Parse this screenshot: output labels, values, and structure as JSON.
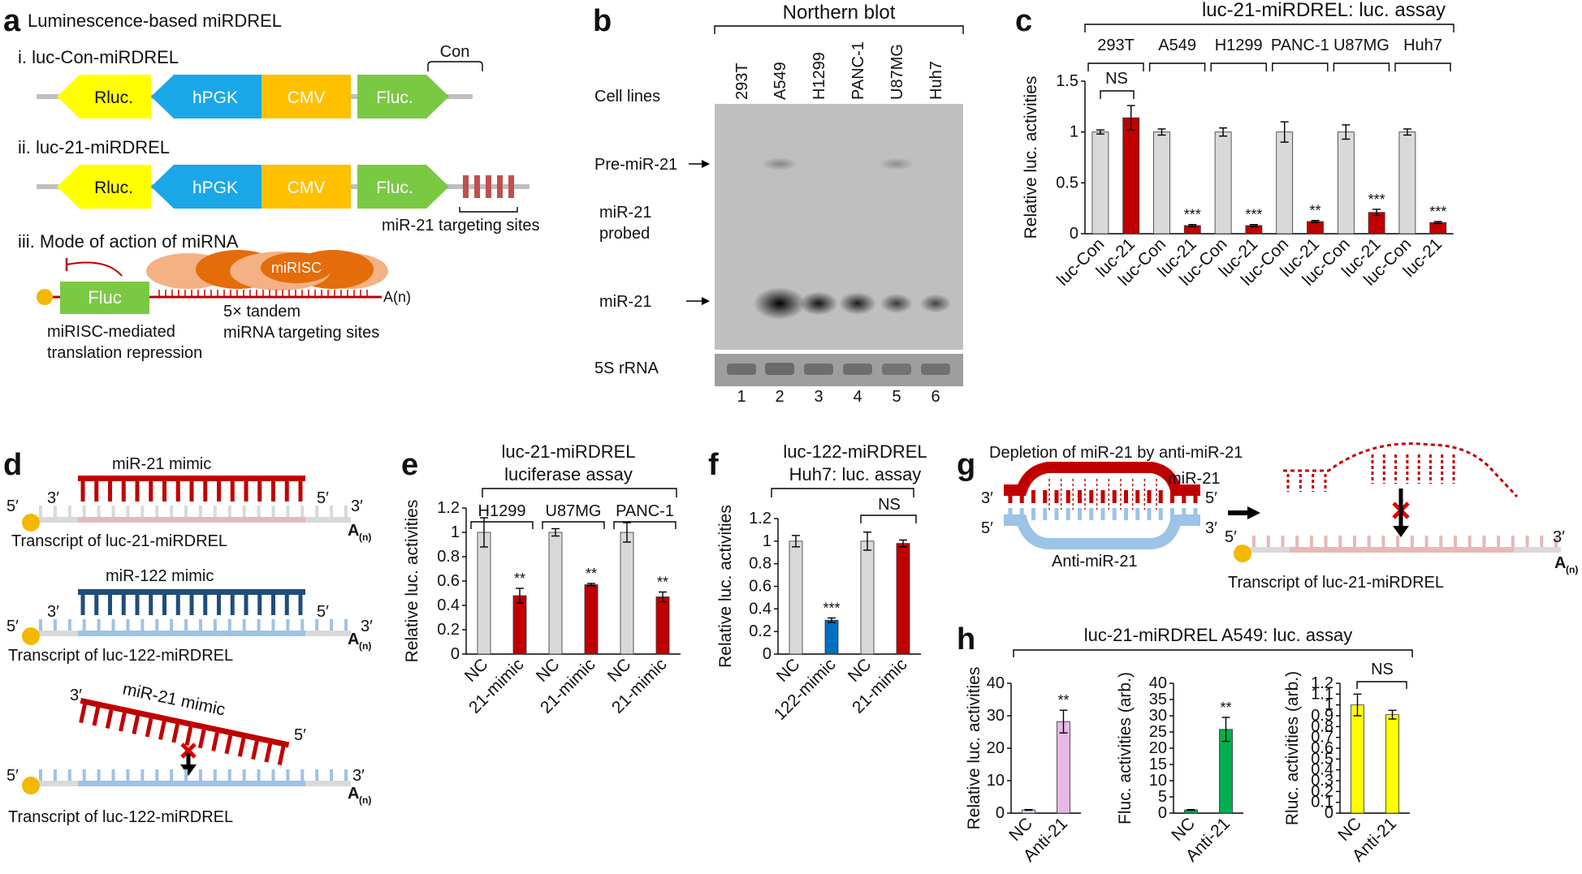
{
  "panel_a": {
    "letter": "a",
    "title": "Luminescence-based miRDREL",
    "row1_title": "i. luc-Con-miRDREL",
    "row2_title": "ii. luc-21-miRDREL",
    "row3_title": "iii. Mode of action of miRNA",
    "rluc": "Rluc.",
    "hpgk": "hPGK",
    "cmv": "CMV",
    "fluc": "Fluc.",
    "con": "Con",
    "targeting_sites": "miR-21 targeting sites",
    "fluc_box": "Fluc",
    "mirisc": "miRISC",
    "polya": "A(n)",
    "repression_1": "miRISC-mediated",
    "repression_2": "translation repression",
    "tandem_1": "5× tandem",
    "tandem_2": "miRNA targeting sites",
    "colors": {
      "rluc": "#ffff00",
      "hpgk": "#1aa7e8",
      "cmv": "#ffc000",
      "fluc": "#7ac943",
      "red": "#c00000",
      "risc_light": "#f4b183",
      "risc_dark": "#e46c0a"
    }
  },
  "panel_b": {
    "letter": "b",
    "title": "Northern blot",
    "cell_lines_label": "Cell lines",
    "lanes": [
      "293T",
      "A549",
      "H1299",
      "PANC-1",
      "U87MG",
      "Huh7"
    ],
    "lane_numbers": [
      "1",
      "2",
      "3",
      "4",
      "5",
      "6"
    ],
    "pre_label": "Pre-miR-21",
    "probe_1": "miR-21",
    "probe_2": "probed",
    "mature_label": "miR-21",
    "rrna_label": "5S rRNA",
    "mir21_band_intensity": [
      0.0,
      1.0,
      0.55,
      0.5,
      0.35,
      0.3
    ],
    "pre_band_intensity": [
      0.0,
      0.3,
      0.0,
      0.0,
      0.25,
      0.0
    ]
  },
  "panel_c": {
    "letter": "c",
    "title": "luc-21-miRDREL: luc. assay",
    "groups": [
      "293T",
      "A549",
      "H1299",
      "PANC-1",
      "U87MG",
      "Huh7"
    ],
    "ns": "NS",
    "significance": [
      "",
      "***",
      "***",
      "**",
      "***",
      "***"
    ]
  },
  "panel_d": {
    "letter": "d",
    "mimic21": "miR-21 mimic",
    "mimic122": "miR-122 mimic",
    "transcript21": "Transcript of luc-21-miRDREL",
    "transcript122": "Transcript of luc-122-miRDREL",
    "p3": "3′",
    "p5": "5′",
    "polya": "A",
    "polya_sub": "(n)",
    "colors": {
      "red": "#c00000",
      "pink": "#e6b9b8",
      "navy": "#1f4e79",
      "light_blue": "#9dc3e6",
      "grey": "#d9d9d9",
      "orange": "#f5b800"
    }
  },
  "panel_e": {
    "letter": "e",
    "title_1": "luc-21-miRDREL",
    "title_2": "luciferase assay",
    "groups": [
      "H1299",
      "U87MG",
      "PANC-1"
    ],
    "significance": [
      "**",
      "**",
      "**"
    ]
  },
  "panel_f": {
    "letter": "f",
    "title_1": "luc-122-miRDREL",
    "title_2": "Huh7: luc. assay",
    "ns": "NS",
    "significance": [
      "***"
    ]
  },
  "panel_g": {
    "letter": "g",
    "title": "Depletion of miR-21 by anti-miR-21",
    "mir21": "miR-21",
    "anti": "Anti-miR-21",
    "p3": "3′",
    "p5": "5′",
    "transcript": "Transcript of luc-21-miRDREL",
    "polya": "A",
    "polya_sub": "(n)"
  },
  "panel_h": {
    "letter": "h",
    "title": "luc-21-miRDREL A549: luc. assay",
    "ns": "NS",
    "significance": [
      "**",
      "**"
    ]
  },
  "chart_data": [
    {
      "id": "c",
      "type": "bar",
      "title": "luc-21-miRDREL: luc. assay",
      "ylabel": "Relative luc. activities",
      "ylim": [
        0,
        1.5
      ],
      "yticks": [
        "0",
        "0.5",
        "1",
        "1.5"
      ],
      "categories": [
        "luc-Con",
        "luc-21",
        "luc-Con",
        "luc-21",
        "luc-Con",
        "luc-21",
        "luc-Con",
        "luc-21",
        "luc-Con",
        "luc-21",
        "luc-Con",
        "luc-21"
      ],
      "values": [
        1.0,
        1.14,
        1.0,
        0.08,
        1.0,
        0.08,
        1.0,
        0.12,
        1.0,
        0.21,
        1.0,
        0.11
      ],
      "errors": [
        0.02,
        0.12,
        0.03,
        0.01,
        0.04,
        0.01,
        0.1,
        0.01,
        0.07,
        0.03,
        0.03,
        0.01
      ],
      "colors": [
        "#d9d9d9",
        "#c00000",
        "#d9d9d9",
        "#c00000",
        "#d9d9d9",
        "#c00000",
        "#d9d9d9",
        "#c00000",
        "#d9d9d9",
        "#c00000",
        "#d9d9d9",
        "#c00000"
      ]
    },
    {
      "id": "e",
      "type": "bar",
      "title": "luc-21-miRDREL luciferase assay",
      "ylabel": "Relative luc. activities",
      "ylim": [
        0,
        1.2
      ],
      "yticks": [
        "0",
        "0.2",
        "0.4",
        "0.6",
        "0.8",
        "1",
        "1.2"
      ],
      "categories": [
        "NC",
        "21-mimic",
        "NC",
        "21-mimic",
        "NC",
        "21-mimic"
      ],
      "values": [
        1.0,
        0.48,
        1.0,
        0.57,
        1.0,
        0.47
      ],
      "errors": [
        0.12,
        0.06,
        0.03,
        0.01,
        0.08,
        0.04
      ],
      "colors": [
        "#d9d9d9",
        "#c00000",
        "#d9d9d9",
        "#c00000",
        "#d9d9d9",
        "#c00000"
      ]
    },
    {
      "id": "f",
      "type": "bar",
      "title": "luc-122-miRDREL Huh7: luc. assay",
      "ylabel": "Relative luc. activities",
      "ylim": [
        0,
        1.2
      ],
      "yticks": [
        "0",
        "0.2",
        "0.4",
        "0.6",
        "0.8",
        "1",
        "1.2"
      ],
      "categories": [
        "NC",
        "122-mimic",
        "NC",
        "21-mimic"
      ],
      "values": [
        1.0,
        0.3,
        1.0,
        0.98
      ],
      "errors": [
        0.05,
        0.02,
        0.08,
        0.03
      ],
      "colors": [
        "#d9d9d9",
        "#0070c0",
        "#d9d9d9",
        "#c00000"
      ]
    },
    {
      "id": "h1",
      "type": "bar",
      "ylabel": "Relative luc. activities",
      "ylim": [
        0,
        40
      ],
      "yticks": [
        "0",
        "10",
        "20",
        "30",
        "40"
      ],
      "categories": [
        "NC",
        "Anti-21"
      ],
      "values": [
        1.0,
        28.2
      ],
      "errors": [
        0.1,
        3.5
      ],
      "colors": [
        "#e6d0ec",
        "#e6b8e6"
      ]
    },
    {
      "id": "h2",
      "type": "bar",
      "ylabel": "Fluc. activities (arb.)",
      "ylim": [
        0,
        40
      ],
      "yticks": [
        "0",
        "5",
        "10",
        "15",
        "20",
        "25",
        "30",
        "35",
        "40"
      ],
      "categories": [
        "NC",
        "Anti-21"
      ],
      "values": [
        1.0,
        25.8
      ],
      "errors": [
        0.1,
        3.7
      ],
      "colors": [
        "#00b050",
        "#00b050"
      ]
    },
    {
      "id": "h3",
      "type": "bar",
      "ylabel": "Rluc. activities (arb.)",
      "ylim": [
        0,
        1.2
      ],
      "yticks": [
        "0",
        "0.1",
        "0.2",
        "0.3",
        "0.4",
        "0.5",
        "0.6",
        "0.7",
        "0.8",
        "0.9",
        "1",
        "1.1",
        "1.2"
      ],
      "categories": [
        "NC",
        "Anti-21"
      ],
      "values": [
        1.0,
        0.91
      ],
      "errors": [
        0.1,
        0.04
      ],
      "colors": [
        "#ffff00",
        "#ffff00"
      ]
    }
  ]
}
